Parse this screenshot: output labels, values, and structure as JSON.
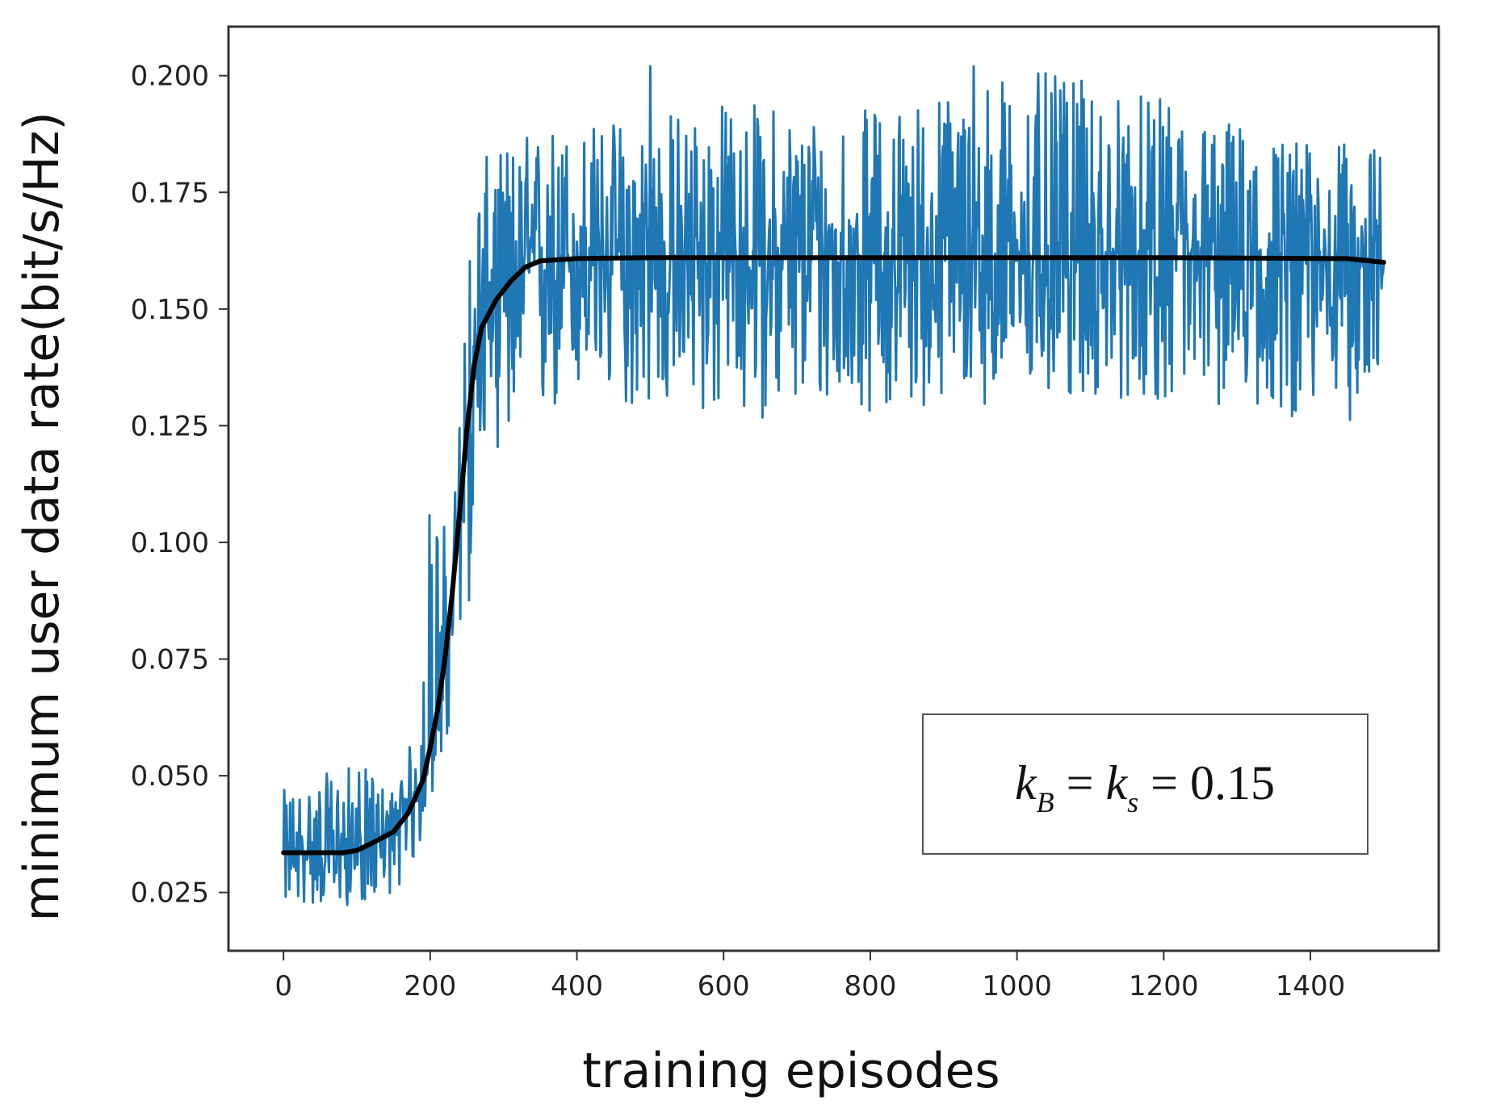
{
  "chart_data": {
    "type": "line",
    "title": "",
    "xlabel": "training episodes",
    "ylabel": "minimum user data rate(bit/s/Hz)",
    "xlim": [
      -75,
      1575
    ],
    "ylim": [
      0.0125,
      0.2105
    ],
    "xticks": [
      0,
      200,
      400,
      600,
      800,
      1000,
      1200,
      1400
    ],
    "xtick_labels": [
      "0",
      "200",
      "400",
      "600",
      "800",
      "1000",
      "1200",
      "1400"
    ],
    "yticks": [
      0.025,
      0.05,
      0.075,
      0.1,
      0.125,
      0.15,
      0.175,
      0.2
    ],
    "ytick_labels": [
      "0.025",
      "0.050",
      "0.075",
      "0.100",
      "0.125",
      "0.150",
      "0.175",
      "0.200"
    ],
    "grid": false,
    "annotation": {
      "parts": [
        {
          "text": "k",
          "style": "italic"
        },
        {
          "text": "B",
          "style": "italic-subscript"
        },
        {
          "text": " = ",
          "style": "normal"
        },
        {
          "text": "k",
          "style": "italic"
        },
        {
          "text": "s",
          "style": "italic-subscript"
        },
        {
          "text": " = 0.15",
          "style": "normal"
        }
      ],
      "placement": "lower-right"
    },
    "series": [
      {
        "color": "#1f77b4",
        "style": "noisy",
        "noise_envelope": {
          "x": [
            0,
            100,
            150,
            180,
            200,
            230,
            250,
            270,
            300,
            350,
            400,
            600,
            800,
            1000,
            1200,
            1400,
            1500
          ],
          "low": [
            0.022,
            0.022,
            0.025,
            0.03,
            0.045,
            0.055,
            0.08,
            0.12,
            0.12,
            0.122,
            0.13,
            0.126,
            0.128,
            0.13,
            0.13,
            0.126,
            0.126
          ],
          "high": [
            0.047,
            0.053,
            0.047,
            0.06,
            0.114,
            0.1,
            0.163,
            0.182,
            0.185,
            0.19,
            0.19,
            0.195,
            0.193,
            0.202,
            0.195,
            0.186,
            0.185
          ]
        },
        "points": [
          [
            0,
            0.034
          ],
          [
            500,
            0.202
          ],
          [
            941,
            0.202
          ],
          [
            1500,
            0.16
          ]
        ]
      },
      {
        "color": "#000000",
        "style": "smooth",
        "points": [
          [
            0,
            0.0335
          ],
          [
            50,
            0.0335
          ],
          [
            80,
            0.0335
          ],
          [
            100,
            0.034
          ],
          [
            120,
            0.0355
          ],
          [
            150,
            0.038
          ],
          [
            170,
            0.042
          ],
          [
            190,
            0.049
          ],
          [
            200,
            0.056
          ],
          [
            210,
            0.064
          ],
          [
            220,
            0.075
          ],
          [
            230,
            0.089
          ],
          [
            240,
            0.106
          ],
          [
            250,
            0.124
          ],
          [
            260,
            0.138
          ],
          [
            270,
            0.146
          ],
          [
            290,
            0.152
          ],
          [
            310,
            0.156
          ],
          [
            330,
            0.159
          ],
          [
            350,
            0.1603
          ],
          [
            400,
            0.1608
          ],
          [
            500,
            0.161
          ],
          [
            800,
            0.161
          ],
          [
            1200,
            0.161
          ],
          [
            1450,
            0.1608
          ],
          [
            1500,
            0.16
          ]
        ]
      }
    ]
  }
}
